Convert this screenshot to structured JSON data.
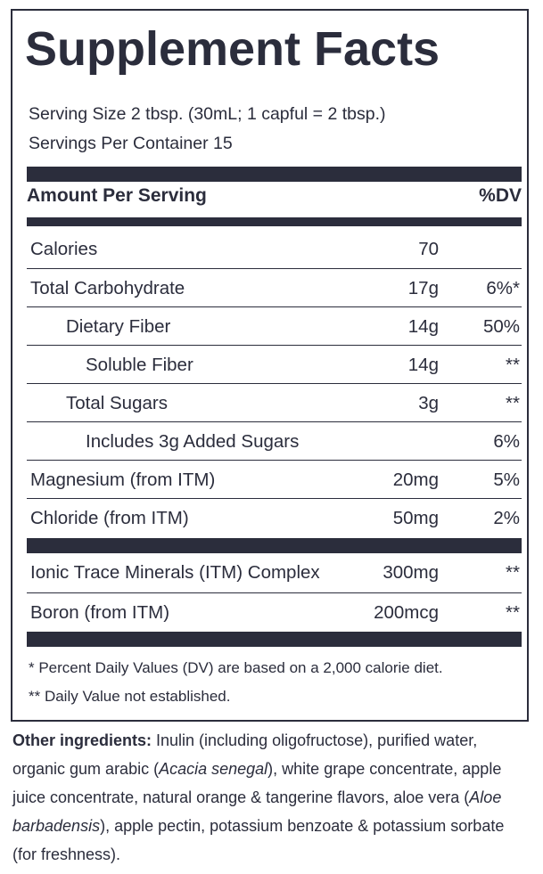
{
  "title": "Supplement Facts",
  "serving_size": "Serving Size 2 tbsp. (30mL; 1 capful = 2 tbsp.)",
  "servings_per_container": "Servings Per Container 15",
  "header": {
    "amount_label": "Amount Per Serving",
    "dv_label": "%DV"
  },
  "rows": [
    {
      "name": "Calories",
      "amount": "70",
      "dv": ""
    },
    {
      "name": "Total Carbohydrate",
      "amount": "17g",
      "dv": "6%*"
    },
    {
      "name": "Dietary Fiber",
      "amount": "14g",
      "dv": "50%"
    },
    {
      "name": "Soluble Fiber",
      "amount": "14g",
      "dv": "**"
    },
    {
      "name": "Total Sugars",
      "amount": "3g",
      "dv": "**"
    },
    {
      "name": "Includes 3g Added Sugars",
      "amount": "",
      "dv": "6%"
    },
    {
      "name": "Magnesium (from ITM)",
      "amount": "20mg",
      "dv": "5%"
    },
    {
      "name": "Chloride (from ITM)",
      "amount": "50mg",
      "dv": "2%"
    },
    {
      "name": "Ionic Trace Minerals (ITM) Complex",
      "amount": "300mg",
      "dv": "**"
    },
    {
      "name": "Boron (from ITM)",
      "amount": "200mcg",
      "dv": "**"
    }
  ],
  "footnotes": [
    "* Percent Daily Values (DV) are based on a 2,000 calorie diet.",
    "** Daily Value not established."
  ],
  "other_ingredients": {
    "label": "Other ingredients:",
    "text_1": " Inulin (including oligofructose), purified water, organic gum arabic (",
    "italic_1": "Acacia senegal",
    "text_2": "), white grape concentrate, apple juice concentrate, natural orange & tangerine flavors, aloe vera (",
    "italic_2": "Aloe barbadensis",
    "text_3": "), apple pectin, potassium benzoate & potassium sorbate (for freshness)."
  },
  "colors": {
    "ink": "#2b2d3c",
    "background": "#ffffff"
  }
}
